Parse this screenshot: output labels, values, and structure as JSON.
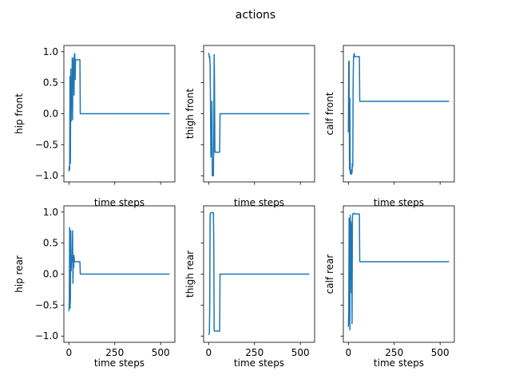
{
  "figure": {
    "title": "actions"
  },
  "chart_data": [
    {
      "type": "line",
      "title": "",
      "xlabel": "time steps",
      "ylabel": "hip front",
      "xlim": [
        -27.5,
        577.5
      ],
      "ylim": [
        -1.1,
        1.1
      ],
      "x_ticks": [
        0,
        250,
        500
      ],
      "x_tick_labels": [
        "",
        "",
        ""
      ],
      "y_ticks": [
        -1.0,
        -0.5,
        0.0,
        0.5,
        1.0
      ],
      "y_tick_labels": [
        "−1.0",
        "−0.5",
        "0.0",
        "0.5",
        "1.0"
      ],
      "color": "#1f77b4",
      "x": [
        0,
        2,
        4,
        6,
        8,
        10,
        12,
        14,
        16,
        18,
        20,
        22,
        24,
        26,
        28,
        30,
        32,
        34,
        36,
        38,
        40,
        42,
        44,
        60,
        62,
        64,
        549
      ],
      "y": [
        -0.93,
        -0.85,
        -0.9,
        0.6,
        -0.8,
        0.72,
        -0.12,
        0.5,
        0.15,
        0.9,
        -0.1,
        0.85,
        0.55,
        0.9,
        0.3,
        0.95,
        0.97,
        0.55,
        0.87,
        0.87,
        0.87,
        0.87,
        0.87,
        0.87,
        0.0,
        0.0,
        0.0
      ]
    },
    {
      "type": "line",
      "title": "",
      "xlabel": "time steps",
      "ylabel": "thigh front",
      "xlim": [
        -27.5,
        577.5
      ],
      "ylim": [
        -1.1,
        1.1
      ],
      "x_ticks": [
        0,
        250,
        500
      ],
      "x_tick_labels": [
        "",
        "",
        ""
      ],
      "y_ticks": [
        -1.0,
        -0.5,
        0.0,
        0.5,
        1.0
      ],
      "y_tick_labels": [
        "",
        "",
        "",
        "",
        ""
      ],
      "color": "#1f77b4",
      "x": [
        0,
        2,
        4,
        6,
        8,
        10,
        12,
        14,
        16,
        18,
        20,
        22,
        24,
        26,
        28,
        30,
        32,
        34,
        36,
        38,
        40,
        42,
        44,
        60,
        62,
        64,
        549
      ],
      "y": [
        0.98,
        0.95,
        0.9,
        0.92,
        0.78,
        0.2,
        -0.7,
        -0.3,
        -0.65,
        0.2,
        -1.0,
        -1.0,
        -1.0,
        -1.0,
        -0.4,
        0.95,
        0.5,
        -0.62,
        -0.62,
        -0.62,
        -0.62,
        -0.62,
        -0.62,
        -0.62,
        0.0,
        0.0,
        0.0
      ]
    },
    {
      "type": "line",
      "title": "",
      "xlabel": "time steps",
      "ylabel": "calf front",
      "xlim": [
        -27.5,
        577.5
      ],
      "ylim": [
        -1.1,
        1.1
      ],
      "x_ticks": [
        0,
        250,
        500
      ],
      "x_tick_labels": [
        "",
        "",
        ""
      ],
      "y_ticks": [
        -1.0,
        -0.5,
        0.0,
        0.5,
        1.0
      ],
      "y_tick_labels": [
        "",
        "",
        "",
        "",
        ""
      ],
      "color": "#1f77b4",
      "x": [
        0,
        2,
        4,
        6,
        8,
        10,
        12,
        14,
        16,
        18,
        20,
        22,
        24,
        26,
        28,
        30,
        32,
        34,
        36,
        38,
        40,
        60,
        62,
        64,
        549
      ],
      "y": [
        -0.3,
        0.83,
        0.85,
        -0.9,
        0.25,
        -0.95,
        -0.97,
        -0.92,
        -0.98,
        -0.9,
        -0.95,
        -0.8,
        -0.85,
        0.5,
        0.9,
        0.95,
        0.97,
        0.92,
        0.92,
        0.92,
        0.92,
        0.92,
        0.2,
        0.2,
        0.2
      ]
    },
    {
      "type": "line",
      "title": "",
      "xlabel": "time steps",
      "ylabel": "hip rear",
      "xlim": [
        -27.5,
        577.5
      ],
      "ylim": [
        -1.1,
        1.1
      ],
      "x_ticks": [
        0,
        250,
        500
      ],
      "x_tick_labels": [
        "0",
        "250",
        "500"
      ],
      "y_ticks": [
        -1.0,
        -0.5,
        0.0,
        0.5,
        1.0
      ],
      "y_tick_labels": [
        "−1.0",
        "−0.5",
        "0.0",
        "0.5",
        "1.0"
      ],
      "color": "#1f77b4",
      "x": [
        0,
        2,
        4,
        6,
        8,
        10,
        12,
        14,
        16,
        18,
        20,
        22,
        24,
        26,
        28,
        30,
        32,
        34,
        36,
        38,
        40,
        60,
        62,
        64,
        549
      ],
      "y": [
        -0.6,
        -0.45,
        0.75,
        -0.55,
        -0.4,
        0.7,
        0.05,
        0.25,
        0.3,
        0.2,
        0.7,
        -0.15,
        0.3,
        0.1,
        0.3,
        0.2,
        0.2,
        0.2,
        0.2,
        0.2,
        0.2,
        0.2,
        0.0,
        0.0,
        0.0
      ]
    },
    {
      "type": "line",
      "title": "",
      "xlabel": "time steps",
      "ylabel": "thigh rear",
      "xlim": [
        -27.5,
        577.5
      ],
      "ylim": [
        -1.1,
        1.1
      ],
      "x_ticks": [
        0,
        250,
        500
      ],
      "x_tick_labels": [
        "0",
        "250",
        "500"
      ],
      "y_ticks": [
        -1.0,
        -0.5,
        0.0,
        0.5,
        1.0
      ],
      "y_tick_labels": [
        "",
        "",
        "",
        "",
        ""
      ],
      "color": "#1f77b4",
      "x": [
        0,
        2,
        4,
        6,
        8,
        10,
        12,
        14,
        16,
        18,
        20,
        22,
        24,
        26,
        28,
        30,
        32,
        34,
        36,
        38,
        40,
        42,
        44,
        60,
        62,
        64,
        549
      ],
      "y": [
        -0.98,
        -0.97,
        -0.95,
        -0.5,
        0.95,
        0.98,
        0.99,
        0.99,
        0.99,
        0.99,
        0.99,
        0.99,
        0.99,
        0.99,
        0.5,
        -0.9,
        -0.92,
        -0.92,
        -0.92,
        -0.92,
        -0.92,
        -0.92,
        -0.92,
        -0.92,
        0.0,
        0.0,
        0.0
      ]
    },
    {
      "type": "line",
      "title": "",
      "xlabel": "time steps",
      "ylabel": "calf rear",
      "xlim": [
        -27.5,
        577.5
      ],
      "ylim": [
        -1.1,
        1.1
      ],
      "x_ticks": [
        0,
        250,
        500
      ],
      "x_tick_labels": [
        "0",
        "250",
        "500"
      ],
      "y_ticks": [
        -1.0,
        -0.5,
        0.0,
        0.5,
        1.0
      ],
      "y_tick_labels": [
        "",
        "",
        "",
        "",
        ""
      ],
      "color": "#1f77b4",
      "x": [
        0,
        2,
        4,
        6,
        8,
        10,
        12,
        14,
        16,
        18,
        20,
        22,
        24,
        26,
        28,
        30,
        32,
        34,
        36,
        38,
        40,
        42,
        60,
        62,
        64,
        549
      ],
      "y": [
        -0.85,
        -0.6,
        0.9,
        0.2,
        -0.9,
        0.95,
        -0.3,
        0.85,
        0.5,
        0.8,
        -0.8,
        0.9,
        0.97,
        0.97,
        0.98,
        0.98,
        0.98,
        0.97,
        0.97,
        0.97,
        0.97,
        0.97,
        0.97,
        0.2,
        0.2,
        0.2
      ]
    }
  ]
}
